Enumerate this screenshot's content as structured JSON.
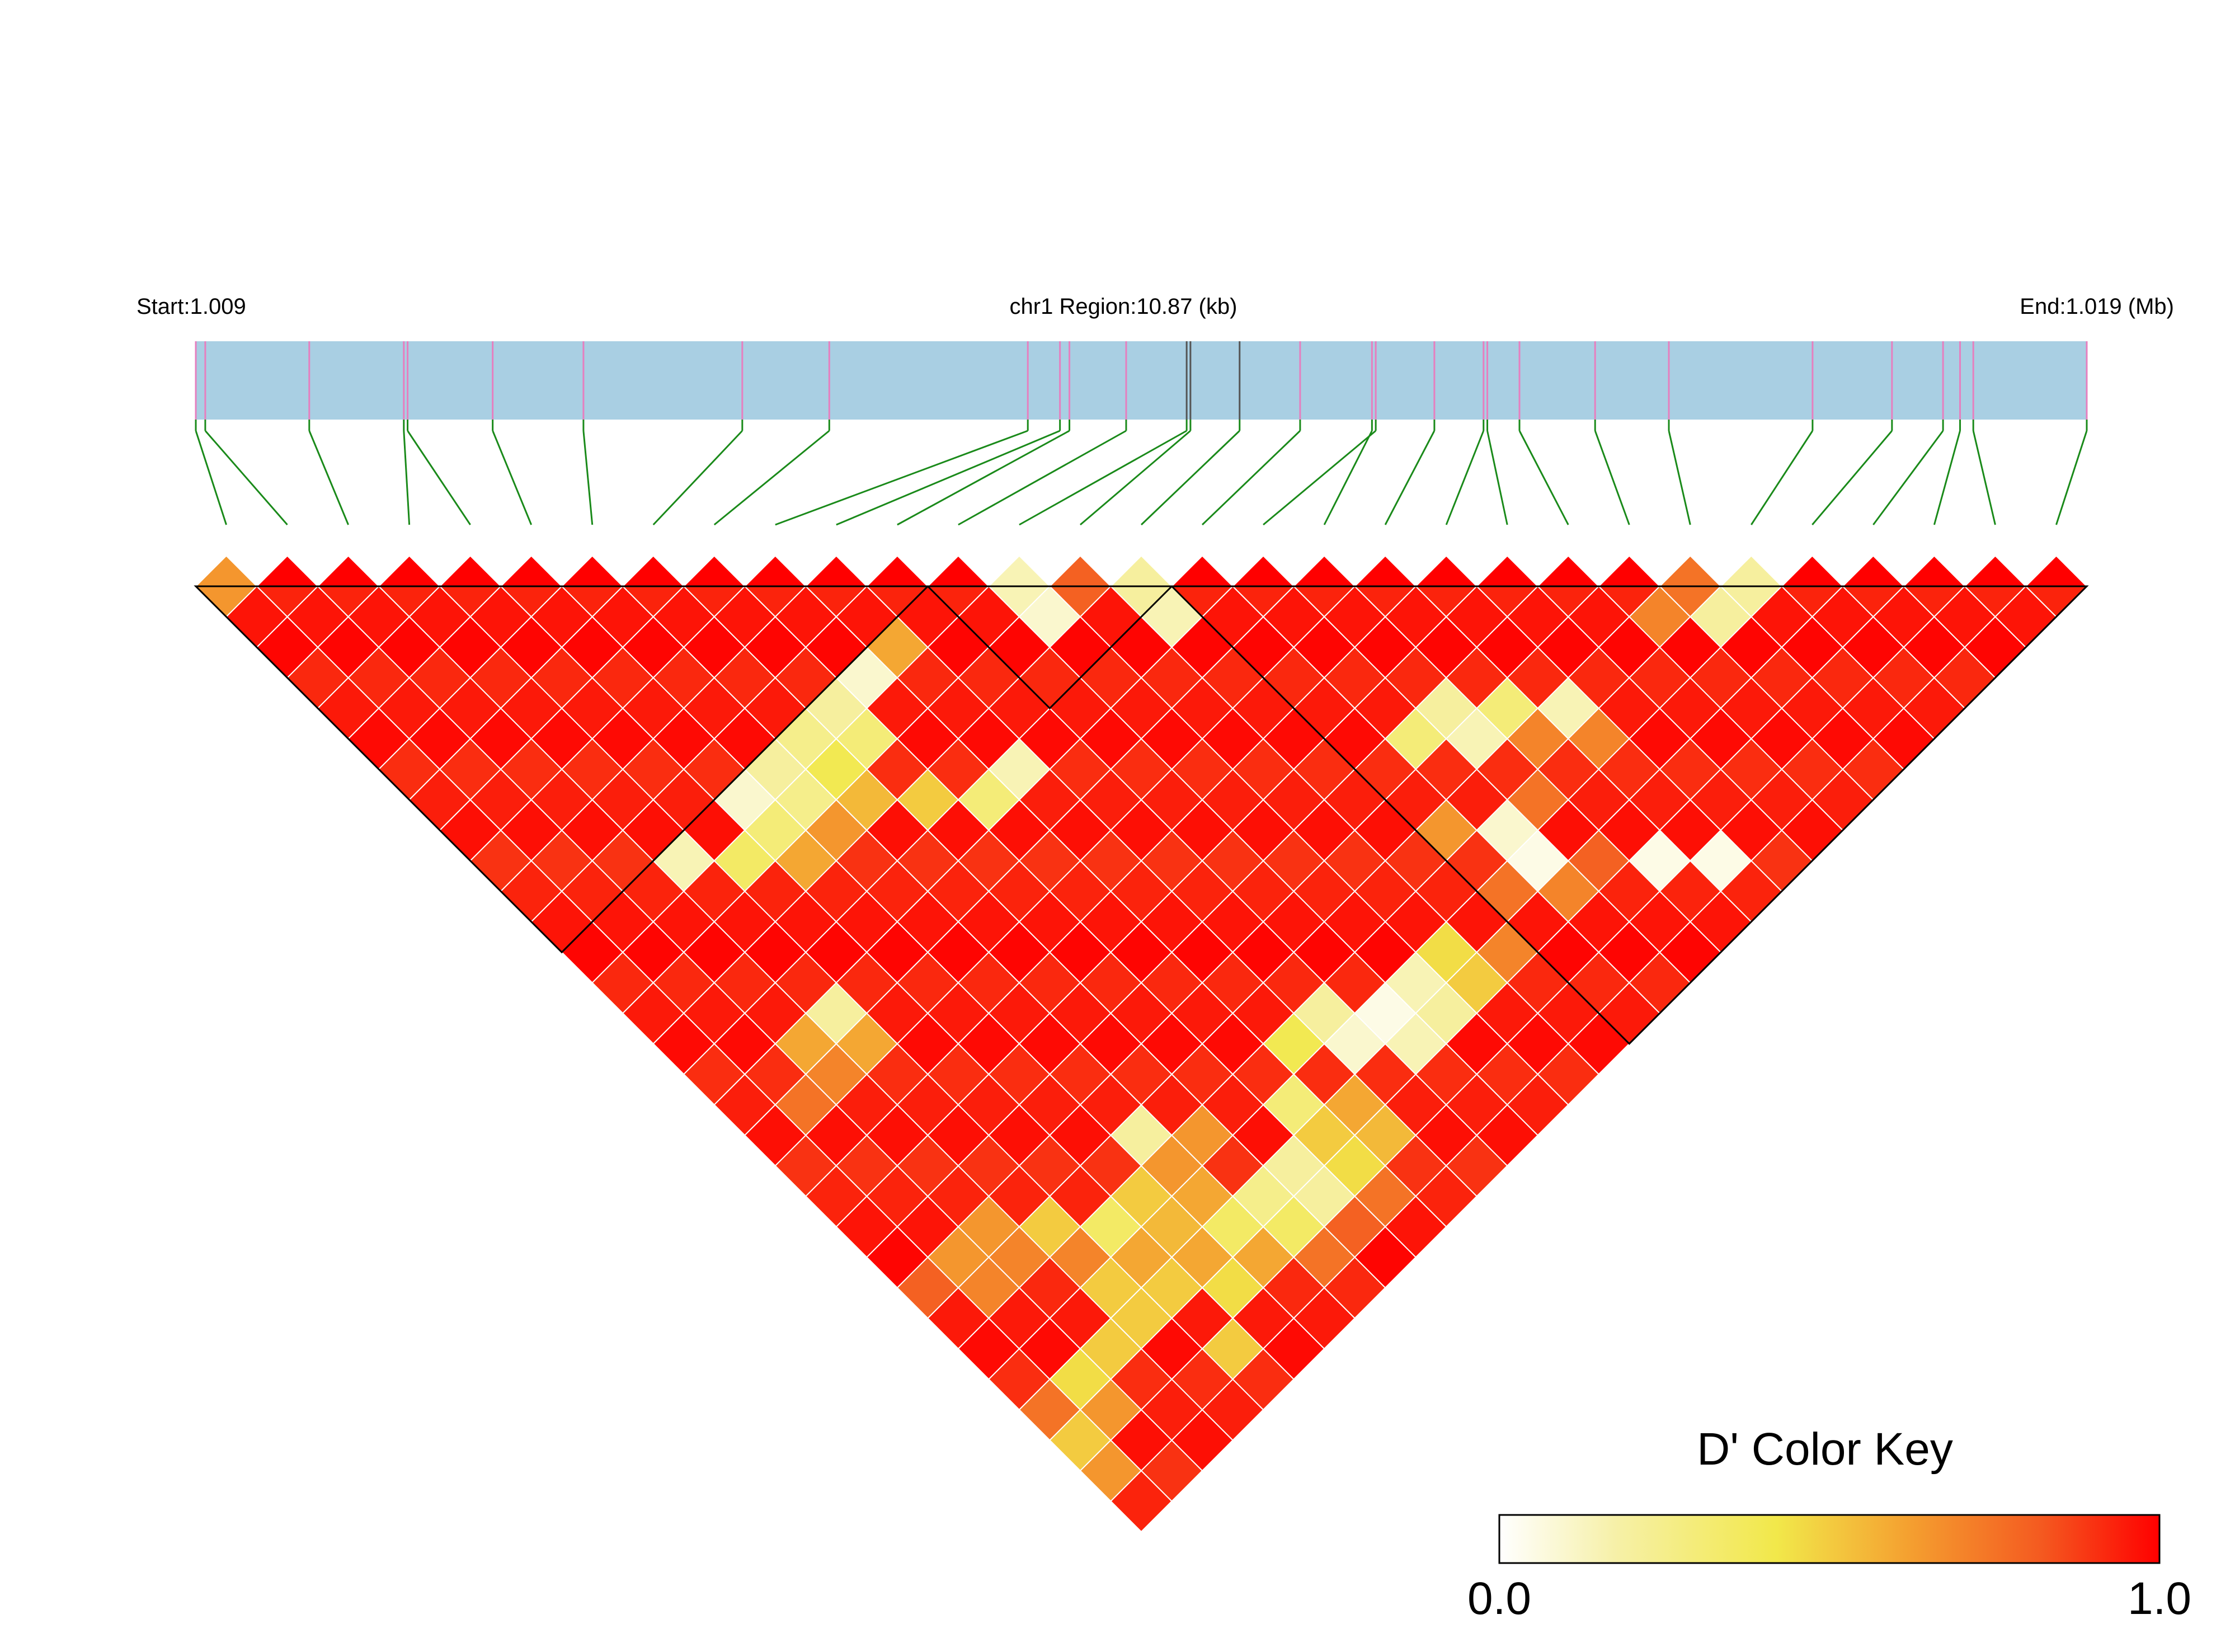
{
  "header": {
    "start_label": "Start:1.009",
    "region_label": "chr1 Region:10.87 (kb)",
    "end_label": "End:1.019 (Mb)"
  },
  "colors": {
    "track": "#a9cfe3",
    "snp_tick": "#e67fbf",
    "snp_tick_dark": "#555555",
    "connector": "#1a8a1a",
    "block_border": "#000000",
    "cell_border": "#ffffff"
  },
  "legend": {
    "title": "D' Color Key",
    "min_label": "0.0",
    "max_label": "1.0",
    "stops": [
      "#ffffff",
      "#f6f0a6",
      "#f2e84a",
      "#f4a030",
      "#f45a20",
      "#ff0000"
    ]
  },
  "chart_data": {
    "type": "heatmap",
    "subtype": "ld-triangle",
    "measure": "D'",
    "chromosome": "chr1",
    "start_mb": 1.009,
    "end_mb": 1.019,
    "region_kb": 10.87,
    "snp_count": 31,
    "snp_positions_fraction": [
      0.0,
      0.005,
      0.06,
      0.11,
      0.112,
      0.157,
      0.205,
      0.289,
      0.335,
      0.44,
      0.457,
      0.462,
      0.492,
      0.524,
      0.526,
      0.552,
      0.584,
      0.624,
      0.622,
      0.655,
      0.681,
      0.683,
      0.7,
      0.74,
      0.779,
      0.855,
      0.897,
      0.924,
      0.933,
      0.94,
      1.0
    ],
    "dark_ticks_fraction": [
      0.524,
      0.526,
      0.552
    ],
    "blocks": [
      [
        0,
        12
      ],
      [
        12,
        16
      ],
      [
        16,
        31
      ]
    ],
    "low_cells": [
      [
        0,
        1,
        0.65
      ],
      [
        13,
        14,
        0.15
      ],
      [
        14,
        15,
        0.8
      ],
      [
        15,
        16,
        0.2
      ],
      [
        13,
        15,
        0.1
      ],
      [
        15,
        17,
        0.15
      ],
      [
        10,
        13,
        0.6
      ],
      [
        9,
        13,
        0.1
      ],
      [
        8,
        13,
        0.2
      ],
      [
        8,
        14,
        0.3
      ],
      [
        7,
        13,
        0.25
      ],
      [
        7,
        14,
        0.4
      ],
      [
        7,
        15,
        0.55
      ],
      [
        6,
        13,
        0.2
      ],
      [
        6,
        14,
        0.25
      ],
      [
        5,
        13,
        0.1
      ],
      [
        5,
        14,
        0.3
      ],
      [
        6,
        15,
        0.65
      ],
      [
        8,
        16,
        0.5
      ],
      [
        9,
        17,
        0.3
      ],
      [
        10,
        17,
        0.15
      ],
      [
        5,
        15,
        0.6
      ],
      [
        4,
        14,
        0.35
      ],
      [
        3,
        13,
        0.15
      ],
      [
        25,
        26,
        0.2
      ],
      [
        24,
        26,
        0.2
      ],
      [
        24,
        25,
        0.75
      ],
      [
        23,
        25,
        0.7
      ],
      [
        20,
        26,
        0.7
      ],
      [
        17,
        23,
        0.3
      ],
      [
        18,
        23,
        0.2
      ],
      [
        18,
        24,
        0.15
      ],
      [
        19,
        24,
        0.3
      ],
      [
        20,
        25,
        0.15
      ],
      [
        19,
        25,
        0.7
      ],
      [
        16,
        25,
        0.65
      ],
      [
        18,
        26,
        0.75
      ],
      [
        17,
        26,
        0.1
      ],
      [
        17,
        27,
        0.05
      ],
      [
        16,
        27,
        0.75
      ],
      [
        20,
        30,
        0.05
      ],
      [
        19,
        29,
        0.05
      ],
      [
        18,
        28,
        0.8
      ],
      [
        17,
        28,
        0.7
      ],
      [
        15,
        28,
        0.7
      ],
      [
        14,
        28,
        0.5
      ],
      [
        13,
        28,
        0.2
      ],
      [
        12,
        28,
        0.15
      ],
      [
        12,
        27,
        0.05
      ],
      [
        11,
        27,
        0.1
      ],
      [
        11,
        26,
        0.2
      ],
      [
        10,
        26,
        0.4
      ],
      [
        13,
        27,
        0.15
      ],
      [
        14,
        27,
        0.45
      ],
      [
        10,
        28,
        0.6
      ],
      [
        9,
        27,
        0.3
      ],
      [
        9,
        28,
        0.5
      ],
      [
        8,
        28,
        0.2
      ],
      [
        7,
        28,
        0.25
      ],
      [
        6,
        28,
        0.35
      ],
      [
        9,
        29,
        0.45
      ],
      [
        10,
        29,
        0.55
      ],
      [
        8,
        29,
        0.2
      ],
      [
        7,
        29,
        0.35
      ],
      [
        3,
        18,
        0.2
      ],
      [
        3,
        19,
        0.6
      ],
      [
        2,
        18,
        0.6
      ],
      [
        2,
        19,
        0.7
      ],
      [
        1,
        19,
        0.75
      ],
      [
        6,
        25,
        0.2
      ],
      [
        5,
        26,
        0.5
      ],
      [
        6,
        26,
        0.65
      ],
      [
        7,
        26,
        0.65
      ],
      [
        6,
        27,
        0.6
      ],
      [
        5,
        27,
        0.55
      ],
      [
        4,
        27,
        0.6
      ],
      [
        3,
        26,
        0.7
      ],
      [
        4,
        26,
        0.35
      ],
      [
        3,
        27,
        0.5
      ],
      [
        3,
        25,
        0.5
      ],
      [
        2,
        24,
        0.65
      ],
      [
        2,
        25,
        0.7
      ],
      [
        1,
        24,
        0.65
      ],
      [
        1,
        25,
        0.7
      ],
      [
        0,
        24,
        0.8
      ],
      [
        0,
        29,
        0.5
      ],
      [
        1,
        29,
        0.65
      ],
      [
        0,
        30,
        0.65
      ],
      [
        0,
        28,
        0.75
      ],
      [
        2,
        28,
        0.5
      ],
      [
        3,
        28,
        0.5
      ],
      [
        1,
        28,
        0.45
      ],
      [
        4,
        28,
        0.5
      ],
      [
        5,
        28,
        0.6
      ],
      [
        6,
        29,
        0.6
      ],
      [
        9,
        30,
        0.75
      ],
      [
        8,
        30,
        0.8
      ],
      [
        7,
        30,
        0.75
      ],
      [
        5,
        29,
        0.45
      ],
      [
        4,
        30,
        0.5
      ]
    ]
  }
}
